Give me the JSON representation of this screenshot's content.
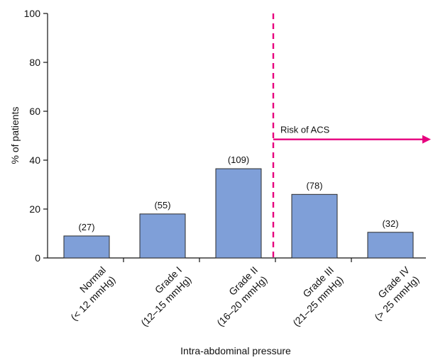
{
  "chart_data": {
    "type": "bar",
    "categories": [
      [
        "Normal",
        "(< 12 mmHg)"
      ],
      [
        "Grade I",
        "(12–15 mmHg)"
      ],
      [
        "Grade II",
        "(16–20 mmHg)"
      ],
      [
        "Grade III",
        "(21–25 mmHg)"
      ],
      [
        "Grade IV",
        "(> 25 mmHg)"
      ]
    ],
    "values": [
      9,
      18,
      36.5,
      26,
      10.5
    ],
    "data_labels": [
      "(27)",
      "(55)",
      "(109)",
      "(78)",
      "(32)"
    ],
    "xlabel": "Intra-abdominal pressure",
    "ylabel": "% of patients",
    "ylim": [
      0,
      100
    ],
    "yticks": [
      0,
      20,
      40,
      60,
      80,
      100
    ],
    "grid": false,
    "annotation": {
      "label": "Risk of ACS",
      "divider_between_categories": [
        2,
        3
      ],
      "arrow_value": 48.5
    },
    "colors": {
      "bar_fill": "#7f9fd8",
      "bar_stroke": "#2b2b2b",
      "annotation": "#e6007e"
    }
  }
}
